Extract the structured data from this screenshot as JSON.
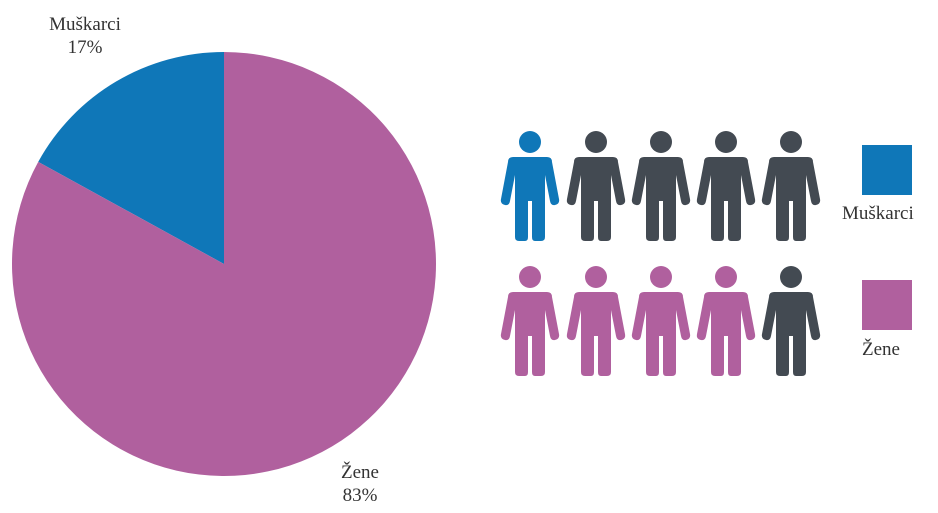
{
  "chart_data": {
    "type": "pie",
    "categories": [
      "Muškarci",
      "Žene"
    ],
    "values": [
      17,
      83
    ],
    "value_labels": [
      "17%",
      "83%"
    ],
    "colors": [
      "#0f77b8",
      "#b0609e"
    ],
    "legend": {
      "placement": "right",
      "entries": [
        "Muškarci",
        "Žene"
      ]
    },
    "pictogram": {
      "rows": [
        {
          "category": "Muškarci",
          "filled": 1,
          "total": 5
        },
        {
          "category": "Žene",
          "filled": 4,
          "total": 5
        }
      ],
      "inactive_color": "#434a52"
    }
  }
}
